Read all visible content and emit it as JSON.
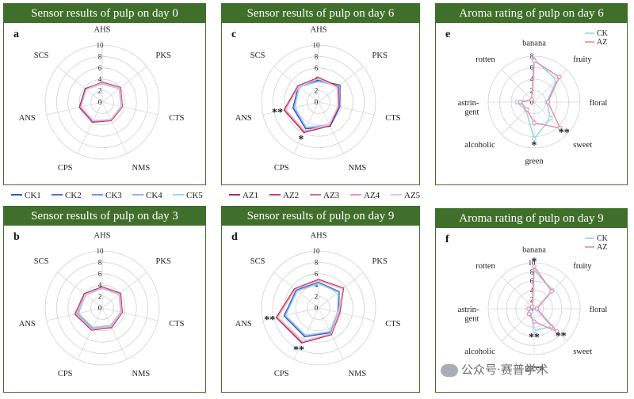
{
  "chart_data": [
    {
      "id": "a",
      "type": "radar",
      "title": "Sensor results of pulp on day 0",
      "panel_letter": "a",
      "axes": [
        "AHS",
        "PKS",
        "CTS",
        "NMS",
        "CPS",
        "ANS",
        "SCS"
      ],
      "rlim": [
        0,
        10
      ],
      "ticks": [
        "0",
        "2",
        "4",
        "6",
        "8",
        "10"
      ],
      "series": [
        {
          "name": "CK1",
          "color": "#1f3fbf",
          "values": [
            3.4,
            4.0,
            3.6,
            3.6,
            3.9,
            4.1,
            3.8
          ]
        },
        {
          "name": "CK2",
          "color": "#4a5fd0",
          "values": [
            3.3,
            3.9,
            3.5,
            3.5,
            3.8,
            4.0,
            3.7
          ]
        },
        {
          "name": "CK3",
          "color": "#6f86e0",
          "values": [
            3.3,
            3.9,
            3.5,
            3.5,
            3.8,
            4.0,
            3.7
          ]
        },
        {
          "name": "CK4",
          "color": "#8fa7ea",
          "values": [
            3.2,
            3.8,
            3.4,
            3.4,
            3.7,
            3.9,
            3.6
          ]
        },
        {
          "name": "CK5",
          "color": "#8fd0ee",
          "values": [
            3.2,
            3.8,
            3.4,
            3.4,
            3.7,
            3.9,
            3.6
          ]
        },
        {
          "name": "AZ1",
          "color": "#a01848",
          "values": [
            3.5,
            4.1,
            3.6,
            3.6,
            3.8,
            4.0,
            3.7
          ]
        },
        {
          "name": "AZ2",
          "color": "#c03060",
          "values": [
            3.5,
            4.1,
            3.6,
            3.6,
            3.8,
            4.0,
            3.7
          ]
        },
        {
          "name": "AZ3",
          "color": "#d65c8a",
          "values": [
            3.4,
            4.0,
            3.5,
            3.5,
            3.7,
            3.9,
            3.6
          ]
        },
        {
          "name": "AZ4",
          "color": "#e48aaa",
          "values": [
            3.4,
            4.0,
            3.5,
            3.5,
            3.7,
            3.9,
            3.6
          ]
        },
        {
          "name": "AZ5",
          "color": "#efb8ce",
          "values": [
            3.3,
            3.9,
            3.5,
            3.4,
            3.6,
            3.8,
            3.6
          ]
        }
      ],
      "annotations": []
    },
    {
      "id": "c",
      "type": "radar",
      "title": "Sensor results of pulp on day 6",
      "panel_letter": "c",
      "axes": [
        "AHS",
        "PKS",
        "CTS",
        "NMS",
        "CPS",
        "ANS",
        "SCS"
      ],
      "rlim": [
        0,
        10
      ],
      "ticks": [
        "0",
        "2",
        "4",
        "6",
        "8",
        "10"
      ],
      "series": [
        {
          "name": "CK1",
          "color": "#1f3fbf",
          "values": [
            3.8,
            4.8,
            3.8,
            4.7,
            5.2,
            4.6,
            4.5
          ]
        },
        {
          "name": "CK2",
          "color": "#4a5fd0",
          "values": [
            3.7,
            4.7,
            3.7,
            4.6,
            5.1,
            4.5,
            4.4
          ]
        },
        {
          "name": "CK3",
          "color": "#6f86e0",
          "values": [
            3.7,
            4.7,
            3.7,
            4.5,
            5.0,
            4.4,
            4.4
          ]
        },
        {
          "name": "CK4",
          "color": "#8fa7ea",
          "values": [
            3.6,
            4.6,
            3.6,
            4.5,
            5.0,
            4.4,
            4.3
          ]
        },
        {
          "name": "CK5",
          "color": "#8fd0ee",
          "values": [
            3.6,
            4.6,
            3.6,
            4.4,
            4.9,
            4.3,
            4.3
          ]
        },
        {
          "name": "AZ1",
          "color": "#a01848",
          "values": [
            4.3,
            4.4,
            3.6,
            4.6,
            5.9,
            6.2,
            4.6
          ]
        },
        {
          "name": "AZ2",
          "color": "#c03060",
          "values": [
            4.2,
            4.3,
            3.6,
            4.5,
            5.8,
            6.1,
            4.5
          ]
        },
        {
          "name": "AZ3",
          "color": "#d65c8a",
          "values": [
            4.2,
            4.3,
            3.5,
            4.5,
            5.7,
            6.0,
            4.5
          ]
        },
        {
          "name": "AZ4",
          "color": "#e48aaa",
          "values": [
            4.1,
            4.2,
            3.5,
            4.4,
            5.7,
            6.0,
            4.4
          ]
        },
        {
          "name": "AZ5",
          "color": "#efb8ce",
          "values": [
            4.1,
            4.2,
            3.5,
            4.4,
            5.6,
            5.9,
            4.4
          ]
        }
      ],
      "annotations": [
        {
          "axis": "ANS",
          "text": "**"
        },
        {
          "axis": "CPS",
          "text": "*"
        }
      ]
    },
    {
      "id": "e",
      "type": "radar",
      "title": "Aroma rating of pulp on day 6",
      "panel_letter": "e",
      "axes": [
        "banana",
        "fruity",
        "floral",
        "sweet",
        "green",
        "alcoholic",
        "astrin-\ngent",
        "rotten"
      ],
      "rlim": [
        0,
        8
      ],
      "ticks": [
        "0",
        "2",
        "4",
        "6",
        "8"
      ],
      "series": [
        {
          "name": "CK",
          "color": "#8fd0ee",
          "values": [
            7.4,
            5.5,
            2.2,
            4.0,
            6.4,
            2.0,
            3.0,
            0.6
          ]
        },
        {
          "name": "AZ",
          "color": "#e48aaa",
          "values": [
            7.2,
            6.2,
            2.4,
            6.4,
            3.6,
            1.8,
            2.4,
            0.6
          ]
        }
      ],
      "annotations": [
        {
          "axis": "sweet",
          "text": "**"
        },
        {
          "axis": "green",
          "text": "*"
        }
      ]
    },
    {
      "id": "b",
      "type": "radar",
      "title": "Sensor results of pulp on day 3",
      "panel_letter": "b",
      "axes": [
        "AHS",
        "PKS",
        "CTS",
        "NMS",
        "CPS",
        "ANS",
        "SCS"
      ],
      "rlim": [
        0,
        10
      ],
      "ticks": [
        "0",
        "2",
        "4",
        "6",
        "8",
        "10"
      ],
      "series": [
        {
          "name": "CK1",
          "color": "#1f3fbf",
          "values": [
            3.6,
            4.0,
            3.5,
            3.6,
            4.0,
            4.5,
            3.9
          ]
        },
        {
          "name": "CK2",
          "color": "#4a5fd0",
          "values": [
            3.5,
            3.9,
            3.4,
            3.5,
            3.9,
            4.4,
            3.8
          ]
        },
        {
          "name": "CK3",
          "color": "#6f86e0",
          "values": [
            3.5,
            3.9,
            3.4,
            3.5,
            3.9,
            4.4,
            3.8
          ]
        },
        {
          "name": "CK4",
          "color": "#8fa7ea",
          "values": [
            3.4,
            3.8,
            3.3,
            3.4,
            3.8,
            4.3,
            3.7
          ]
        },
        {
          "name": "CK5",
          "color": "#8fd0ee",
          "values": [
            3.4,
            3.8,
            3.3,
            3.4,
            3.8,
            4.3,
            3.7
          ]
        },
        {
          "name": "AZ1",
          "color": "#a01848",
          "values": [
            3.7,
            4.1,
            3.6,
            3.8,
            4.3,
            4.9,
            4.0
          ]
        },
        {
          "name": "AZ2",
          "color": "#c03060",
          "values": [
            3.6,
            4.0,
            3.6,
            3.7,
            4.2,
            4.8,
            3.9
          ]
        },
        {
          "name": "AZ3",
          "color": "#d65c8a",
          "values": [
            3.6,
            4.0,
            3.5,
            3.7,
            4.2,
            4.8,
            3.9
          ]
        },
        {
          "name": "AZ4",
          "color": "#e48aaa",
          "values": [
            3.5,
            3.9,
            3.5,
            3.6,
            4.1,
            4.7,
            3.8
          ]
        },
        {
          "name": "AZ5",
          "color": "#efb8ce",
          "values": [
            3.5,
            3.9,
            3.4,
            3.6,
            4.1,
            4.6,
            3.8
          ]
        }
      ],
      "annotations": []
    },
    {
      "id": "d",
      "type": "radar",
      "title": "Sensor results of pulp on day 9",
      "panel_letter": "d",
      "axes": [
        "AHS",
        "PKS",
        "CTS",
        "NMS",
        "CPS",
        "ANS",
        "SCS"
      ],
      "rlim": [
        0,
        10
      ],
      "ticks": [
        "0",
        "2",
        "4",
        "6",
        "8",
        "10"
      ],
      "series": [
        {
          "name": "CK1",
          "color": "#1f3fbf",
          "values": [
            4.5,
            4.6,
            3.6,
            4.8,
            5.6,
            6.2,
            5.0
          ]
        },
        {
          "name": "CK2",
          "color": "#4a5fd0",
          "values": [
            4.4,
            4.5,
            3.5,
            4.7,
            5.5,
            6.1,
            4.9
          ]
        },
        {
          "name": "CK3",
          "color": "#6f86e0",
          "values": [
            4.4,
            4.5,
            3.5,
            4.7,
            5.4,
            6.0,
            4.9
          ]
        },
        {
          "name": "CK4",
          "color": "#8fa7ea",
          "values": [
            4.3,
            4.4,
            3.4,
            4.6,
            5.4,
            6.0,
            4.8
          ]
        },
        {
          "name": "CK5",
          "color": "#8fd0ee",
          "values": [
            4.3,
            4.4,
            3.4,
            4.6,
            5.3,
            5.9,
            4.8
          ]
        },
        {
          "name": "AZ1",
          "color": "#a01848",
          "values": [
            5.0,
            5.6,
            3.8,
            5.2,
            6.8,
            7.6,
            5.4
          ]
        },
        {
          "name": "AZ2",
          "color": "#c03060",
          "values": [
            4.9,
            5.5,
            3.8,
            5.1,
            6.7,
            7.5,
            5.3
          ]
        },
        {
          "name": "AZ3",
          "color": "#d65c8a",
          "values": [
            4.9,
            5.5,
            3.7,
            5.1,
            6.6,
            7.4,
            5.3
          ]
        },
        {
          "name": "AZ4",
          "color": "#e48aaa",
          "values": [
            4.8,
            5.4,
            3.7,
            5.0,
            6.6,
            7.4,
            5.2
          ]
        },
        {
          "name": "AZ5",
          "color": "#efb8ce",
          "values": [
            4.8,
            5.4,
            3.6,
            5.0,
            6.5,
            7.3,
            5.2
          ]
        }
      ],
      "annotations": [
        {
          "axis": "ANS",
          "text": "**"
        },
        {
          "axis": "CPS",
          "text": "**"
        }
      ]
    },
    {
      "id": "f",
      "type": "radar",
      "title": "Aroma rating of pulp on day 9",
      "panel_letter": "f",
      "axes": [
        "banana",
        "fruity",
        "floral",
        "sweet",
        "green",
        "alcoholic",
        "astrin-\ngent",
        "rotten"
      ],
      "rlim": [
        0,
        10
      ],
      "ticks": [
        "0",
        "2",
        "4",
        "6",
        "8",
        "10"
      ],
      "series": [
        {
          "name": "CK",
          "color": "#8fd0ee",
          "values": [
            8.4,
            5.6,
            0.6,
            5.4,
            4.8,
            1.0,
            1.0,
            0.6
          ]
        },
        {
          "name": "AZ",
          "color": "#e48aaa",
          "values": [
            9.2,
            5.4,
            0.6,
            7.0,
            2.8,
            1.6,
            1.2,
            0.6
          ]
        }
      ],
      "annotations": [
        {
          "axis": "banana",
          "text": "*"
        },
        {
          "axis": "sweet",
          "text": "**"
        },
        {
          "axis": "green",
          "text": "**"
        }
      ]
    }
  ],
  "legend": {
    "items": [
      {
        "name": "CK1",
        "color": "#1f3fbf"
      },
      {
        "name": "CK2",
        "color": "#4a5fd0"
      },
      {
        "name": "CK3",
        "color": "#6f86e0"
      },
      {
        "name": "CK4",
        "color": "#8fa7ea"
      },
      {
        "name": "CK5",
        "color": "#8fd0ee"
      },
      {
        "name": "AZ1",
        "color": "#a01848"
      },
      {
        "name": "AZ2",
        "color": "#c03060"
      },
      {
        "name": "AZ3",
        "color": "#d65c8a"
      },
      {
        "name": "AZ4",
        "color": "#e48aaa"
      },
      {
        "name": "AZ5",
        "color": "#efb8ce"
      }
    ]
  },
  "watermark": {
    "text": "公众号·赛普学术"
  },
  "colors": {
    "panel_border": "#3f6f2a",
    "title_bg": "#3f6f2a",
    "grid": "#cfcfcf"
  }
}
